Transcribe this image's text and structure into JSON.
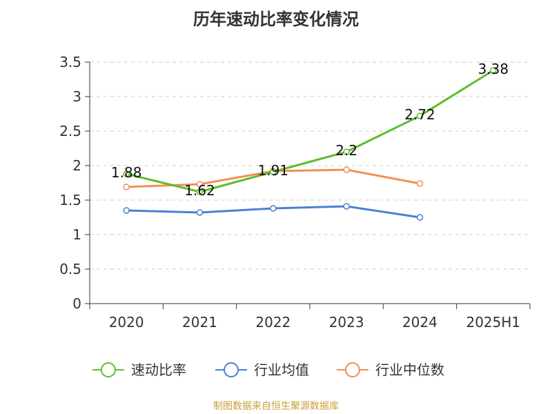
{
  "chart_data": {
    "type": "line",
    "title": "历年速动比率变化情况",
    "categories": [
      "2020",
      "2021",
      "2022",
      "2023",
      "2024",
      "2025H1"
    ],
    "ylim": [
      0,
      3.5
    ],
    "yticks": [
      "0",
      "0.5",
      "1",
      "1.5",
      "2",
      "2.5",
      "3",
      "3.5"
    ],
    "grid": true,
    "legend_position": "bottom",
    "series": [
      {
        "name": "速动比率",
        "color": "#5cbd2c",
        "values": [
          1.88,
          1.62,
          1.91,
          2.2,
          2.72,
          3.38
        ],
        "labels": [
          "1.88",
          "1.62",
          "1.91",
          "2.2",
          "2.72",
          "3.38"
        ]
      },
      {
        "name": "行业均值",
        "color": "#4a7fd4",
        "values": [
          1.35,
          1.32,
          1.38,
          1.41,
          1.25,
          null
        ]
      },
      {
        "name": "行业中位数",
        "color": "#f28e55",
        "values": [
          1.69,
          1.73,
          1.92,
          1.94,
          1.74,
          null
        ]
      }
    ]
  },
  "source_note": "制图数据来自恒生聚源数据库"
}
